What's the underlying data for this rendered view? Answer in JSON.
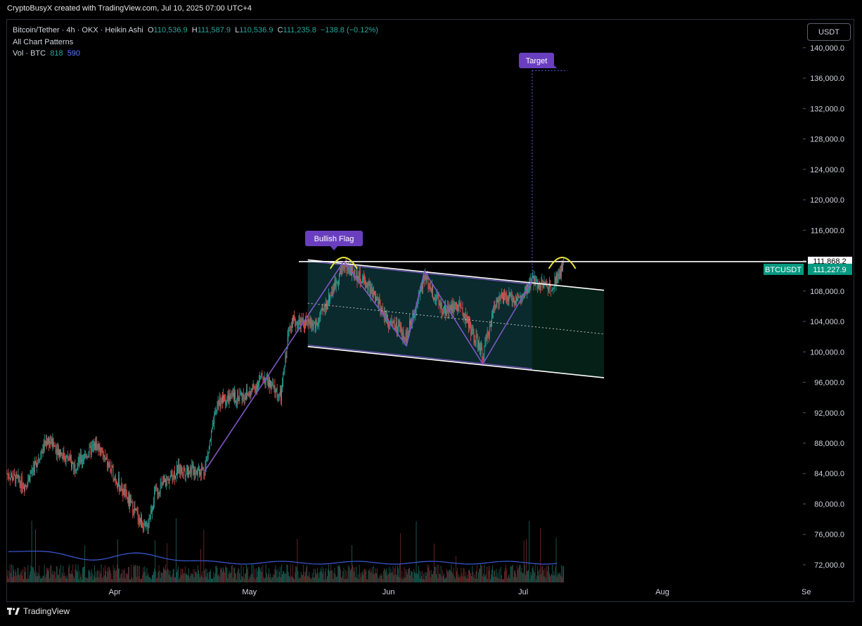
{
  "header": {
    "credit": "CryptoBusyX created with TradingView.com, Jul 10, 2025 07:00 UTC+4"
  },
  "legend": {
    "symbol": "Bitcoin/Tether · 4h · OKX · Heikin Ashi",
    "o_label": "O",
    "o_value": "110,536.9",
    "h_label": "H",
    "h_value": "111,587.9",
    "l_label": "L",
    "l_value": "110,536.9",
    "c_label": "C",
    "c_value": "111,235.8",
    "change": "−138.8 (−0.12%)",
    "line2": "All Chart Patterns",
    "vol_label": "Vol · BTC",
    "vol_a": "818",
    "vol_b": "590"
  },
  "currency_button": "USDT",
  "footer": {
    "brand": "TradingView"
  },
  "colors": {
    "up": "#26a69a",
    "down": "#ef5350",
    "pattern": "#7e57c2",
    "badge": "#089981",
    "arc": "#e8e13a"
  },
  "chart_data": {
    "type": "candlestick",
    "title": "",
    "xlabel": "",
    "ylabel": "",
    "y_axis": {
      "ticks": [
        72000,
        76000,
        80000,
        84000,
        88000,
        92000,
        96000,
        100000,
        104000,
        108000,
        112000,
        116000,
        120000,
        124000,
        128000,
        132000,
        136000,
        140000
      ],
      "tick_labels": [
        "72,000.0",
        "76,000.0",
        "80,000.0",
        "84,000.0",
        "88,000.0",
        "92,000.0",
        "96,000.0",
        "100,000.0",
        "104,000.0",
        "108,000.0",
        "",
        "116,000.0",
        "120,000.0",
        "124,000.0",
        "128,000.0",
        "132,000.0",
        "136,000.0",
        "140,000.0"
      ],
      "range": [
        69500,
        143500
      ]
    },
    "x_axis": {
      "labels": [
        "Apr",
        "May",
        "Jun",
        "Jul",
        "Aug",
        "Se"
      ],
      "range": [
        "2025-03-08",
        "2025-09-01"
      ]
    },
    "labels": {
      "bullish_flag": "Bullish Flag",
      "target": "Target"
    },
    "price_badges": [
      {
        "label": "BTCUSDT",
        "value": "111,227.9",
        "price": 111227.9
      },
      {
        "value": "111,868.2",
        "price": 111868.2
      }
    ],
    "resistance_price": 111868.2,
    "target_price": 137000,
    "flagpole": [
      {
        "date": "2025-04-21",
        "price": 84300
      },
      {
        "date": "2025-05-10",
        "price": 101200
      },
      {
        "date": "2025-05-22",
        "price": 111900
      }
    ],
    "zigzag": [
      {
        "date": "2025-05-22",
        "price": 111900
      },
      {
        "date": "2025-06-05",
        "price": 100800
      },
      {
        "date": "2025-06-09",
        "price": 110600
      },
      {
        "date": "2025-06-22",
        "price": 98400
      },
      {
        "date": "2025-07-03",
        "price": 109400
      }
    ],
    "channel": {
      "upper": [
        {
          "date": "2025-05-14",
          "price": 112100
        },
        {
          "date": "2025-07-19",
          "price": 108100
        }
      ],
      "lower": [
        {
          "date": "2025-05-14",
          "price": 100700
        },
        {
          "date": "2025-07-19",
          "price": 96600
        }
      ]
    },
    "price_path": [
      {
        "date": "2025-03-08",
        "price": 84000
      },
      {
        "date": "2025-03-12",
        "price": 82500
      },
      {
        "date": "2025-03-17",
        "price": 88500
      },
      {
        "date": "2025-03-23",
        "price": 85000
      },
      {
        "date": "2025-03-28",
        "price": 87800
      },
      {
        "date": "2025-04-02",
        "price": 82500
      },
      {
        "date": "2025-04-06",
        "price": 78500
      },
      {
        "date": "2025-04-08",
        "price": 76500
      },
      {
        "date": "2025-04-10",
        "price": 81500
      },
      {
        "date": "2025-04-15",
        "price": 84500
      },
      {
        "date": "2025-04-21",
        "price": 84500
      },
      {
        "date": "2025-04-24",
        "price": 93500
      },
      {
        "date": "2025-05-01",
        "price": 94500
      },
      {
        "date": "2025-05-04",
        "price": 96800
      },
      {
        "date": "2025-05-08",
        "price": 94000
      },
      {
        "date": "2025-05-10",
        "price": 104000
      },
      {
        "date": "2025-05-16",
        "price": 103500
      },
      {
        "date": "2025-05-22",
        "price": 111500
      },
      {
        "date": "2025-05-27",
        "price": 109000
      },
      {
        "date": "2025-06-01",
        "price": 104000
      },
      {
        "date": "2025-06-05",
        "price": 102000
      },
      {
        "date": "2025-06-09",
        "price": 110000
      },
      {
        "date": "2025-06-13",
        "price": 105500
      },
      {
        "date": "2025-06-17",
        "price": 106000
      },
      {
        "date": "2025-06-22",
        "price": 99500
      },
      {
        "date": "2025-06-25",
        "price": 107000
      },
      {
        "date": "2025-07-01",
        "price": 107000
      },
      {
        "date": "2025-07-03",
        "price": 109500
      },
      {
        "date": "2025-07-07",
        "price": 108500
      },
      {
        "date": "2025-07-10",
        "price": 111200
      }
    ]
  }
}
